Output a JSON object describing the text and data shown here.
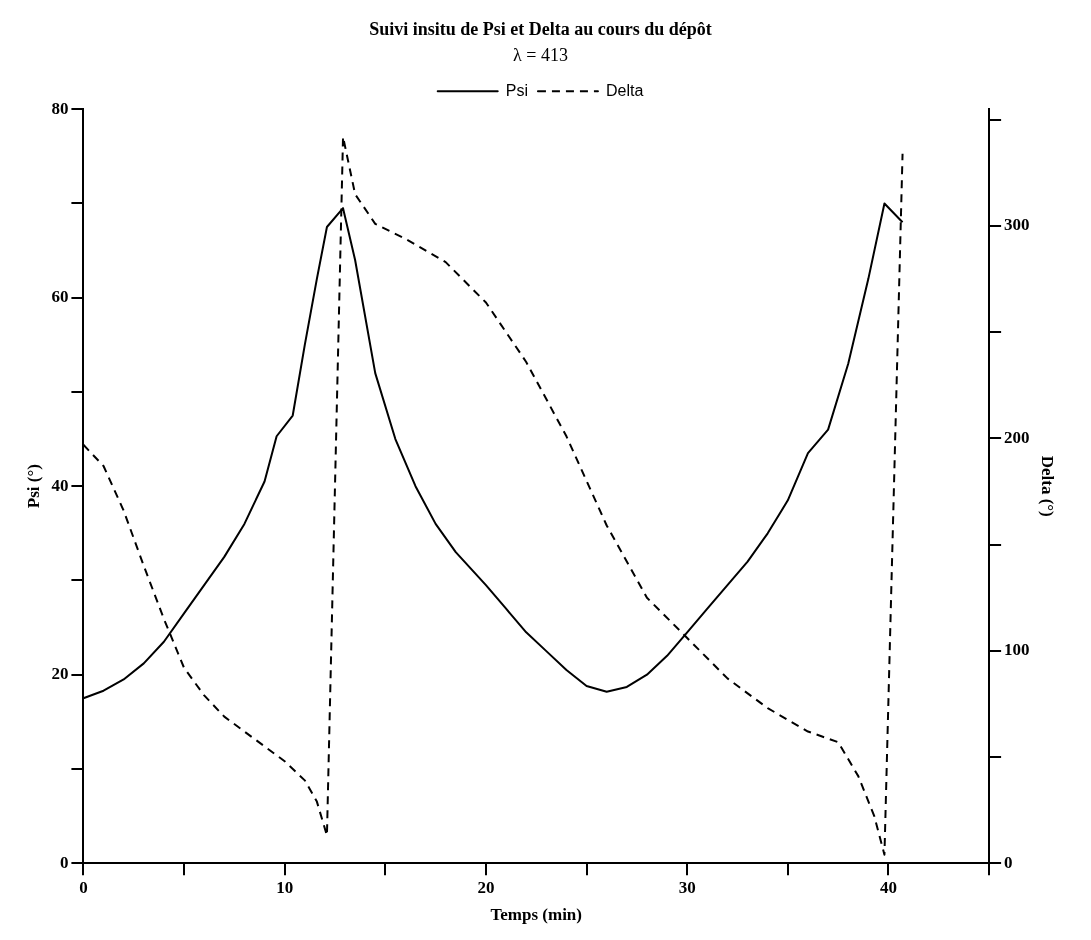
{
  "chart_data": {
    "type": "line",
    "title": "Suivi insitu de Psi et Delta au cours du dépôt",
    "subtitle": "λ = 413",
    "xlabel": "Temps (min)",
    "ylabel": "Psi (°)",
    "y2label": "Delta (°)",
    "xlim": [
      0,
      45
    ],
    "xticks": [
      0,
      {
        "value": 5,
        "label": null
      },
      10,
      {
        "value": 15,
        "label": null
      },
      20,
      {
        "value": 25,
        "label": null
      },
      30,
      {
        "value": 35,
        "label": null
      },
      40,
      {
        "value": 45,
        "label": null
      }
    ],
    "ylim": [
      0,
      80
    ],
    "yticks": [
      0,
      {
        "value": 10,
        "label": null
      },
      20,
      {
        "value": 30,
        "label": null
      },
      40,
      {
        "value": 50,
        "label": null
      },
      60,
      {
        "value": 70,
        "label": null
      },
      80
    ],
    "y2lim": [
      0,
      355
    ],
    "y2ticks": [
      0,
      {
        "value": 50,
        "label": null
      },
      100,
      {
        "value": 150,
        "label": null
      },
      200,
      {
        "value": 250,
        "label": null
      },
      300,
      {
        "value": 350,
        "label": null
      }
    ],
    "grid": false,
    "legend": "top right",
    "marker": "none",
    "series": [
      {
        "name": "Psi",
        "color": "#000000",
        "line_style": "solid",
        "x": [
          0,
          1,
          2,
          3,
          4,
          5,
          6,
          7,
          8,
          9,
          9.6,
          10.4,
          11,
          11.6,
          12.1,
          12.9,
          13.5,
          14.5,
          15.5,
          16.5,
          17.5,
          18.5,
          20,
          21,
          22,
          23,
          24,
          25,
          26,
          27,
          28,
          29,
          30,
          31,
          32,
          33,
          34,
          35,
          36,
          37,
          38,
          39,
          39.8,
          40.7
        ],
        "values": [
          17.5,
          18.3,
          19.5,
          21.2,
          23.5,
          26.5,
          29.5,
          32.5,
          36,
          40.5,
          45.3,
          47.5,
          55,
          62,
          67.5,
          69.5,
          64,
          52,
          45,
          40,
          36,
          33,
          29.5,
          27,
          24.5,
          22.5,
          20.5,
          18.8,
          18.2,
          18.7,
          20,
          22,
          24.5,
          27,
          29.5,
          32,
          35,
          38.5,
          43.5,
          46,
          53,
          62,
          70,
          68
        ]
      },
      {
        "name": "Delta",
        "color": "#000000",
        "line_style": "dashed",
        "axis": "y2",
        "x": [
          0,
          1,
          2,
          3,
          4,
          5,
          6,
          7,
          8,
          9,
          10,
          11,
          11.6,
          12.1,
          12.9,
          13.5,
          14.5,
          16,
          18,
          20,
          22,
          24,
          26,
          28,
          30,
          32,
          34,
          36,
          37.5,
          38.5,
          39.3,
          39.8,
          40.7
        ],
        "values": [
          197,
          187,
          166,
          140,
          115,
          92,
          79,
          69,
          62,
          55,
          48,
          39,
          29,
          13,
          342,
          315,
          301,
          294,
          283,
          264,
          236,
          201,
          159,
          125,
          106,
          87,
          73,
          62,
          57,
          41,
          22,
          4,
          334
        ]
      }
    ]
  }
}
